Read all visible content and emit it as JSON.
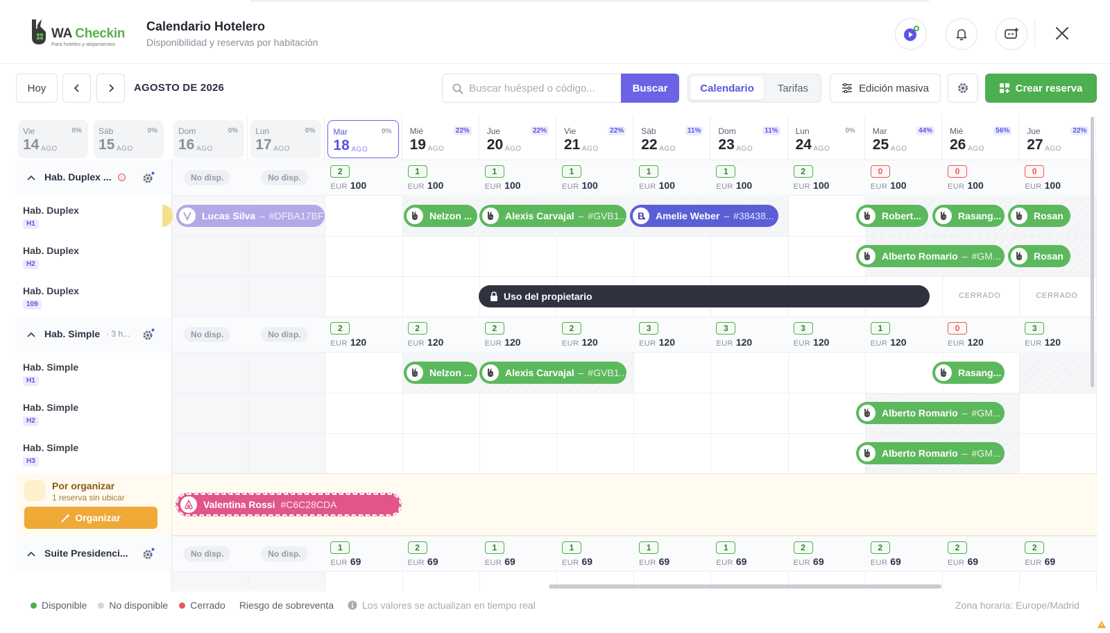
{
  "header": {
    "brand_name_part1": "WA",
    "brand_name_part2": "Checkin",
    "brand_tagline": "Para hoteles y alojamientos",
    "title": "Calendario Hotelero",
    "subtitle": "Disponibilidad y reservas por habitación",
    "icons": [
      "play-icon",
      "bell-icon",
      "chat-support-icon",
      "close-icon"
    ]
  },
  "toolbar": {
    "today_label": "Hoy",
    "month_label": "AGOSTO DE 2026",
    "search_placeholder": "Buscar huésped o código...",
    "search_button": "Buscar",
    "view_calendar": "Calendario",
    "view_rates": "Tarifas",
    "bulk_edit": "Edición masiva",
    "create_booking": "Crear reserva"
  },
  "days": [
    {
      "name": "Vie",
      "num": "14",
      "month": "AGO",
      "occ": "0%",
      "past": true
    },
    {
      "name": "Sáb",
      "num": "15",
      "month": "AGO",
      "occ": "0%",
      "past": true
    },
    {
      "name": "Dom",
      "num": "16",
      "month": "AGO",
      "occ": "0%",
      "past": true
    },
    {
      "name": "Lun",
      "num": "17",
      "month": "AGO",
      "occ": "0%",
      "past": true
    },
    {
      "name": "Mar",
      "num": "18",
      "month": "AGO",
      "occ": "0%",
      "today": true
    },
    {
      "name": "Mié",
      "num": "19",
      "month": "AGO",
      "occ": "22%"
    },
    {
      "name": "Jue",
      "num": "20",
      "month": "AGO",
      "occ": "22%"
    },
    {
      "name": "Vie",
      "num": "21",
      "month": "AGO",
      "occ": "22%"
    },
    {
      "name": "Sáb",
      "num": "22",
      "month": "AGO",
      "occ": "11%"
    },
    {
      "name": "Dom",
      "num": "23",
      "month": "AGO",
      "occ": "11%"
    },
    {
      "name": "Lun",
      "num": "24",
      "month": "AGO",
      "occ": "0%"
    },
    {
      "name": "Mar",
      "num": "25",
      "month": "AGO",
      "occ": "44%"
    },
    {
      "name": "Mié",
      "num": "26",
      "month": "AGO",
      "occ": "56%"
    },
    {
      "name": "Jue",
      "num": "27",
      "month": "AGO",
      "occ": "22%"
    }
  ],
  "groups": [
    {
      "name": "Hab. Duplex ...",
      "has_alert": true,
      "unavailable": [
        "No disp.",
        "No disp."
      ],
      "currency": "EUR",
      "avail": [
        "2",
        "1",
        "1",
        "1",
        "1",
        "1",
        "2",
        "0",
        "0",
        "0"
      ],
      "prices": [
        "100",
        "100",
        "100",
        "100",
        "100",
        "100",
        "100",
        "100",
        "100",
        "100"
      ],
      "rooms": [
        {
          "name": "Hab. Duplex",
          "tag": "H1"
        },
        {
          "name": "Hab. Duplex",
          "tag": "H2"
        },
        {
          "name": "Hab. Duplex",
          "tag": "109"
        }
      ]
    },
    {
      "name": "Hab. Simple",
      "count_label": "· 3 h...",
      "unavailable": [
        "No disp.",
        "No disp."
      ],
      "currency": "EUR",
      "avail": [
        "2",
        "2",
        "2",
        "2",
        "3",
        "3",
        "3",
        "1",
        "0",
        "3"
      ],
      "prices": [
        "120",
        "120",
        "120",
        "120",
        "120",
        "120",
        "120",
        "120",
        "120",
        "120"
      ],
      "rooms": [
        {
          "name": "Hab. Simple",
          "tag": "H1"
        },
        {
          "name": "Hab. Simple",
          "tag": "H2"
        },
        {
          "name": "Hab. Simple",
          "tag": "H3"
        }
      ]
    },
    {
      "name": "Suite Presidenci...",
      "unavailable": [
        "No disp.",
        "No disp."
      ],
      "currency": "EUR",
      "avail": [
        "1",
        "2",
        "1",
        "1",
        "1",
        "1",
        "2",
        "2",
        "2",
        "2"
      ],
      "prices": [
        "69",
        "69",
        "69",
        "69",
        "69",
        "69",
        "69",
        "69",
        "69",
        "69"
      ]
    }
  ],
  "bookings": [
    {
      "guest": "Lucas Silva",
      "code": "#DFBA17BF",
      "color": "#b4a8e8",
      "channel": "vrbo-icon"
    },
    {
      "guest": "Nelzon ...",
      "code": "",
      "color": "#5cb85c",
      "channel": "wacheckin-icon"
    },
    {
      "guest": "Alexis Carvajal",
      "code": "#GVB1...",
      "color": "#5cb85c",
      "channel": "wacheckin-icon"
    },
    {
      "guest": "Amelie Weber",
      "code": "#38438...",
      "color": "#5a5fd6",
      "channel": "booking-icon"
    },
    {
      "guest": "Robert...",
      "code": "",
      "color": "#5cb85c",
      "channel": "wacheckin-icon"
    },
    {
      "guest": "Rasang...",
      "code": "",
      "color": "#5cb85c",
      "channel": "wacheckin-icon"
    },
    {
      "guest": "Rosan",
      "code": "",
      "color": "#5cb85c",
      "channel": "wacheckin-icon"
    },
    {
      "guest": "Alberto Romario",
      "code": "#GM...",
      "color": "#5cb85c",
      "channel": "wacheckin-icon"
    },
    {
      "guest": "Rosan",
      "code": "",
      "color": "#5cb85c",
      "channel": "wacheckin-icon"
    },
    {
      "guest": "Nelzon ...",
      "code": "",
      "color": "#5cb85c",
      "channel": "wacheckin-icon"
    },
    {
      "guest": "Alexis Carvajal",
      "code": "#GVB1...",
      "color": "#5cb85c",
      "channel": "wacheckin-icon"
    },
    {
      "guest": "Rasang...",
      "code": "",
      "color": "#5cb85c",
      "channel": "wacheckin-icon"
    },
    {
      "guest": "Alberto Romario",
      "code": "#GM...",
      "color": "#5cb85c",
      "channel": "wacheckin-icon"
    },
    {
      "guest": "Alberto Romario",
      "code": "#GM...",
      "color": "#5cb85c",
      "channel": "wacheckin-icon"
    }
  ],
  "owner_block": {
    "label": "Uso del propietario"
  },
  "closed_labels": [
    "CERRADO",
    "CERRADO"
  ],
  "unassigned": {
    "title": "Por organizar",
    "subtitle": "1 reserva sin ubicar",
    "button": "Organizar",
    "booking": {
      "guest": "Valentina Rossi",
      "code": "#C6C28CDA",
      "color": "#e0568a",
      "channel": "airbnb-icon"
    }
  },
  "legend": {
    "available": "Disponible",
    "unavailable": "No disponible",
    "closed": "Cerrado",
    "overbooking": "Riesgo de sobreventa",
    "realtime_note": "Los valores se actualizan en tiempo real",
    "timezone": "Zona horaria: Europe/Madrid"
  },
  "colors": {
    "accent": "#6a63e6",
    "green": "#4caf50",
    "red": "#e15b5b",
    "dark": "#30333f",
    "unassigned_bg": "#fffbf1",
    "organize": "#eea937"
  }
}
